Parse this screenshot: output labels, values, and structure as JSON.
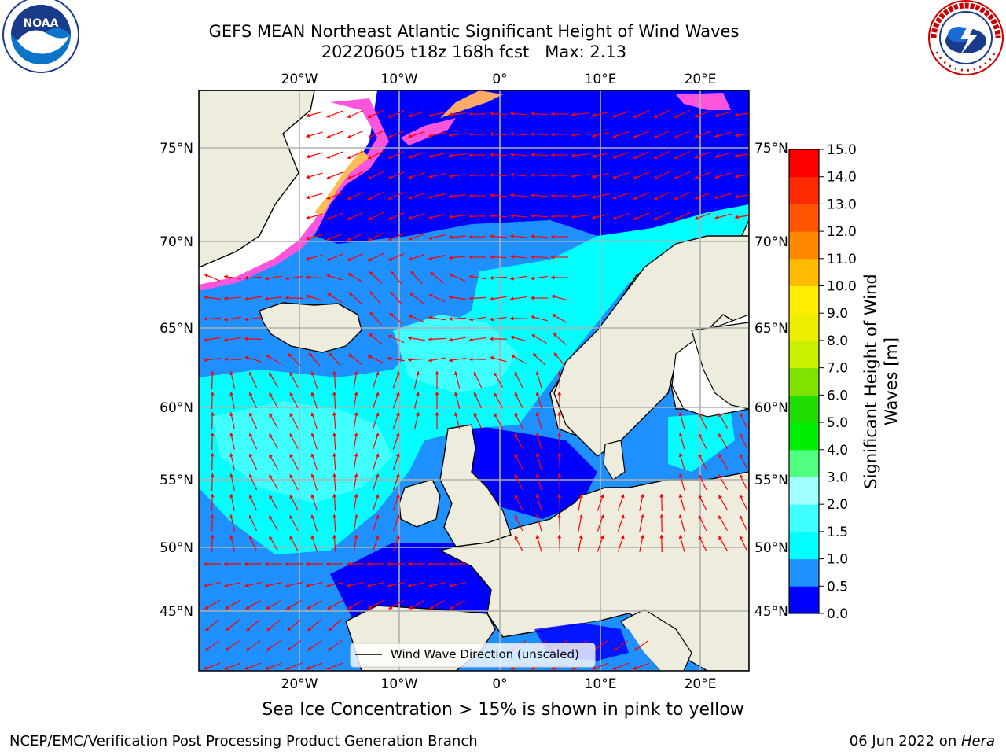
{
  "title": {
    "line1": "GEFS MEAN Northeast Atlantic Significant Height of Wind Waves",
    "line2": "20220605 t18z 168h fcst   Max: 2.13"
  },
  "logos": {
    "left_name": "NOAA",
    "left_icon": "noaa-logo-icon",
    "right_name": "NATIONAL WEATHER SERVICE",
    "right_icon": "nws-logo-icon"
  },
  "axes": {
    "lon_ticks": [
      "20°W",
      "10°W",
      "0°",
      "10°E",
      "20°E"
    ],
    "lat_ticks": [
      "75°N",
      "70°N",
      "65°N",
      "60°N",
      "55°N",
      "50°N",
      "45°N"
    ]
  },
  "legend": {
    "label": "Wind Wave Direction (unscaled)"
  },
  "colorbar": {
    "label": "Significant Height of Wind Waves [m]",
    "ticks": [
      "0.0",
      "0.5",
      "1.0",
      "1.5",
      "2.0",
      "3.0",
      "4.0",
      "5.0",
      "6.0",
      "7.0",
      "8.0",
      "9.0",
      "10.0",
      "11.0",
      "12.0",
      "13.0",
      "14.0",
      "15.0"
    ],
    "colors": [
      "#0000ff",
      "#1e90ff",
      "#00ffff",
      "#40ffff",
      "#a0ffff",
      "#50ff80",
      "#00ee00",
      "#20dd00",
      "#80e000",
      "#c8f000",
      "#eeee00",
      "#ffee00",
      "#ffbb00",
      "#ff8800",
      "#ff5500",
      "#ff2a00",
      "#ff0000"
    ]
  },
  "chart_data": {
    "type": "heatmap",
    "variable": "Significant Height of Wind Waves",
    "units": "m",
    "max": 2.13,
    "lon_range": [
      -30,
      25
    ],
    "lat_range": [
      41,
      78
    ],
    "color_scale_range": [
      0,
      15
    ],
    "overlay": "Wind Wave Direction (unscaled)"
  },
  "caption": "Sea Ice Concentration > 15% is shown in pink to yellow",
  "footer": {
    "left": "NCEP/EMC/Verification Post Processing Product Generation Branch",
    "right_date": "06 Jun 2022 on ",
    "right_host": "Hera"
  },
  "colors": {
    "land": "#eeeddd",
    "ocean_low": "#1e90ff",
    "ocean_very_low": "#0000ff",
    "ocean_mid": "#00ffff",
    "ocean_mid2": "#40ffff",
    "ice_pink": "#ff55dd",
    "ice_yellow": "#ffee77",
    "arrow": "#ff0000",
    "grid": "#b0b0b0"
  }
}
